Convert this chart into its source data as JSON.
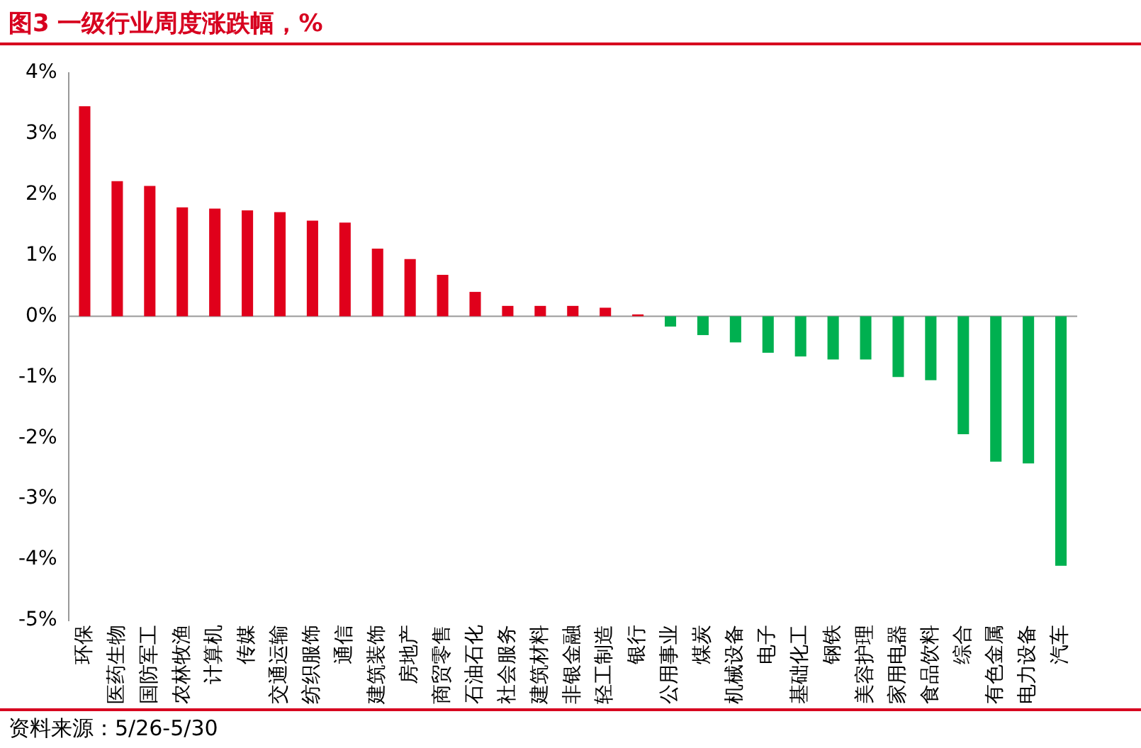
{
  "chart_data": {
    "type": "bar",
    "title": "图3  一级行业周度涨跌幅，%",
    "categories": [
      "环保",
      "医药生物",
      "国防军工",
      "农林牧渔",
      "计算机",
      "传媒",
      "交通运输",
      "纺织服饰",
      "通信",
      "建筑装饰",
      "房地产",
      "商贸零售",
      "石油石化",
      "社会服务",
      "建筑材料",
      "非银金融",
      "轻工制造",
      "银行",
      "公用事业",
      "煤炭",
      "机械设备",
      "电子",
      "基础化工",
      "钢铁",
      "美容护理",
      "家用电器",
      "食品饮料",
      "综合",
      "有色金属",
      "电力设备",
      "汽车"
    ],
    "values": [
      3.45,
      2.22,
      2.14,
      1.79,
      1.77,
      1.74,
      1.71,
      1.57,
      1.54,
      1.11,
      0.94,
      0.68,
      0.4,
      0.17,
      0.17,
      0.17,
      0.14,
      0.03,
      -0.17,
      -0.31,
      -0.43,
      -0.6,
      -0.66,
      -0.71,
      -0.71,
      -1.0,
      -1.05,
      -1.94,
      -2.39,
      -2.42,
      -4.1
    ],
    "colors": [
      "#e0001b",
      "#e0001b",
      "#e0001b",
      "#e0001b",
      "#e0001b",
      "#e0001b",
      "#e0001b",
      "#e0001b",
      "#e0001b",
      "#e0001b",
      "#e0001b",
      "#e0001b",
      "#e0001b",
      "#e0001b",
      "#e0001b",
      "#e0001b",
      "#e0001b",
      "#e0001b",
      "#00b050",
      "#00b050",
      "#00b050",
      "#00b050",
      "#00b050",
      "#00b050",
      "#00b050",
      "#00b050",
      "#00b050",
      "#00b050",
      "#00b050",
      "#00b050",
      "#00b050"
    ],
    "ylim": [
      -5,
      4
    ],
    "yticks": [
      {
        "value": -5,
        "label": "-5%"
      },
      {
        "value": -4,
        "label": "-4%"
      },
      {
        "value": -3,
        "label": "-3%"
      },
      {
        "value": -2,
        "label": "-2%"
      },
      {
        "value": -1,
        "label": "-1%"
      },
      {
        "value": 0,
        "label": "0%"
      },
      {
        "value": 1,
        "label": "1%"
      },
      {
        "value": 2,
        "label": "2%"
      },
      {
        "value": 3,
        "label": "3%"
      },
      {
        "value": 4,
        "label": "4%"
      }
    ],
    "ref_lines": [
      {
        "axis": "y",
        "value": 0,
        "color": "#999999"
      }
    ],
    "legend": false,
    "annotations": [
      "资料来源：5/26-5/30"
    ]
  }
}
